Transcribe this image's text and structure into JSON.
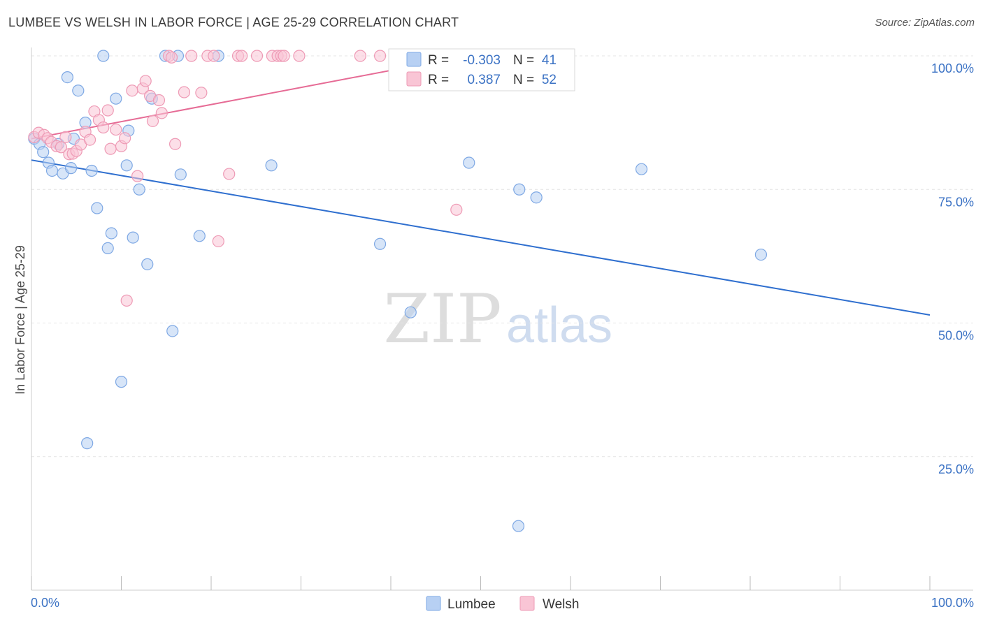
{
  "title": "LUMBEE VS WELSH IN LABOR FORCE | AGE 25-29 CORRELATION CHART",
  "source": "Source: ZipAtlas.com",
  "watermark": {
    "zip": "ZIP",
    "atlas": "atlas"
  },
  "chart_data": {
    "type": "scatter",
    "ylabel": "In Labor Force | Age 25-29",
    "xlabel": "",
    "xlim": [
      0,
      100
    ],
    "ylim": [
      0,
      100
    ],
    "x_tick_labels": [
      "0.0%",
      "100.0%"
    ],
    "y_ticks": [
      25,
      50,
      75,
      100
    ],
    "y_tick_labels": [
      "25.0%",
      "50.0%",
      "75.0%",
      "100.0%"
    ],
    "grid": true,
    "legend_position": "top-center",
    "colors": {
      "lumbee_fill": "#b7d0f3",
      "lumbee_stroke": "#7ea8e4",
      "lumbee_line": "#2f6fcf",
      "welsh_fill": "#f9c5d5",
      "welsh_stroke": "#ee9ab5",
      "welsh_line": "#e66b95",
      "accent_text": "#3b72c4"
    },
    "series": [
      {
        "name": "Lumbee",
        "R_label": "R =",
        "R": "-0.303",
        "N_label": "N =",
        "N": "41",
        "trend": {
          "x": [
            0,
            100
          ],
          "y": [
            80.5,
            51.5
          ]
        },
        "points": [
          [
            0.3,
            84.5
          ],
          [
            0.9,
            83.5
          ],
          [
            1.3,
            82
          ],
          [
            1.9,
            80
          ],
          [
            2.3,
            78.5
          ],
          [
            3.0,
            83.5
          ],
          [
            3.5,
            78
          ],
          [
            4.0,
            96
          ],
          [
            4.4,
            79
          ],
          [
            4.7,
            84.5
          ],
          [
            5.2,
            93.5
          ],
          [
            6.0,
            87.5
          ],
          [
            6.7,
            78.5
          ],
          [
            7.3,
            71.5
          ],
          [
            8.0,
            100
          ],
          [
            8.5,
            64
          ],
          [
            8.9,
            66.8
          ],
          [
            9.4,
            92
          ],
          [
            10.0,
            39
          ],
          [
            10.6,
            79.5
          ],
          [
            10.8,
            86
          ],
          [
            11.3,
            66
          ],
          [
            12.0,
            75
          ],
          [
            12.9,
            61
          ],
          [
            13.4,
            92
          ],
          [
            14.9,
            100
          ],
          [
            15.7,
            48.5
          ],
          [
            16.3,
            100
          ],
          [
            16.6,
            77.8
          ],
          [
            18.7,
            66.3
          ],
          [
            20.8,
            100
          ],
          [
            26.7,
            79.5
          ],
          [
            38.8,
            64.8
          ],
          [
            42.2,
            52
          ],
          [
            48.7,
            80
          ],
          [
            54.3,
            75
          ],
          [
            56.2,
            73.5
          ],
          [
            67.9,
            78.8
          ],
          [
            81.2,
            62.8
          ],
          [
            6.2,
            27.5
          ],
          [
            54.2,
            12
          ]
        ]
      },
      {
        "name": "Welsh",
        "R_label": "R =",
        "R": "0.387",
        "N_label": "N =",
        "N": "52",
        "trend": {
          "x": [
            0,
            48.5
          ],
          "y": [
            84.5,
            100
          ]
        },
        "points": [
          [
            0.3,
            84.8
          ],
          [
            0.8,
            85.6
          ],
          [
            1.4,
            85.2
          ],
          [
            1.8,
            84.6
          ],
          [
            2.2,
            83.9
          ],
          [
            2.8,
            83.1
          ],
          [
            3.3,
            82.9
          ],
          [
            3.8,
            84.8
          ],
          [
            4.2,
            81.6
          ],
          [
            4.6,
            81.7
          ],
          [
            5.0,
            82.2
          ],
          [
            5.5,
            83.4
          ],
          [
            6.0,
            85.8
          ],
          [
            6.5,
            84.3
          ],
          [
            7.0,
            89.6
          ],
          [
            7.5,
            88
          ],
          [
            8.0,
            86.6
          ],
          [
            8.5,
            89.8
          ],
          [
            8.8,
            82.6
          ],
          [
            9.4,
            86.2
          ],
          [
            10.0,
            83.1
          ],
          [
            10.4,
            84.6
          ],
          [
            10.6,
            54.2
          ],
          [
            11.2,
            93.5
          ],
          [
            11.8,
            77.5
          ],
          [
            12.4,
            93.9
          ],
          [
            12.7,
            95.3
          ],
          [
            13.2,
            92.5
          ],
          [
            13.5,
            87.8
          ],
          [
            14.2,
            91.7
          ],
          [
            14.5,
            89.3
          ],
          [
            15.3,
            100
          ],
          [
            15.6,
            99.7
          ],
          [
            16.0,
            83.5
          ],
          [
            17.0,
            93.2
          ],
          [
            17.8,
            100
          ],
          [
            18.9,
            93.1
          ],
          [
            19.6,
            100
          ],
          [
            20.3,
            100
          ],
          [
            20.8,
            65.3
          ],
          [
            22.0,
            77.9
          ],
          [
            23.0,
            100
          ],
          [
            23.4,
            100
          ],
          [
            25.1,
            100
          ],
          [
            26.8,
            100
          ],
          [
            27.4,
            100
          ],
          [
            27.8,
            100
          ],
          [
            28.1,
            100
          ],
          [
            29.8,
            100
          ],
          [
            36.6,
            100
          ],
          [
            38.8,
            100
          ],
          [
            47.3,
            71.2
          ]
        ]
      }
    ]
  },
  "bottom_legend": {
    "items": [
      "Lumbee",
      "Welsh"
    ]
  }
}
